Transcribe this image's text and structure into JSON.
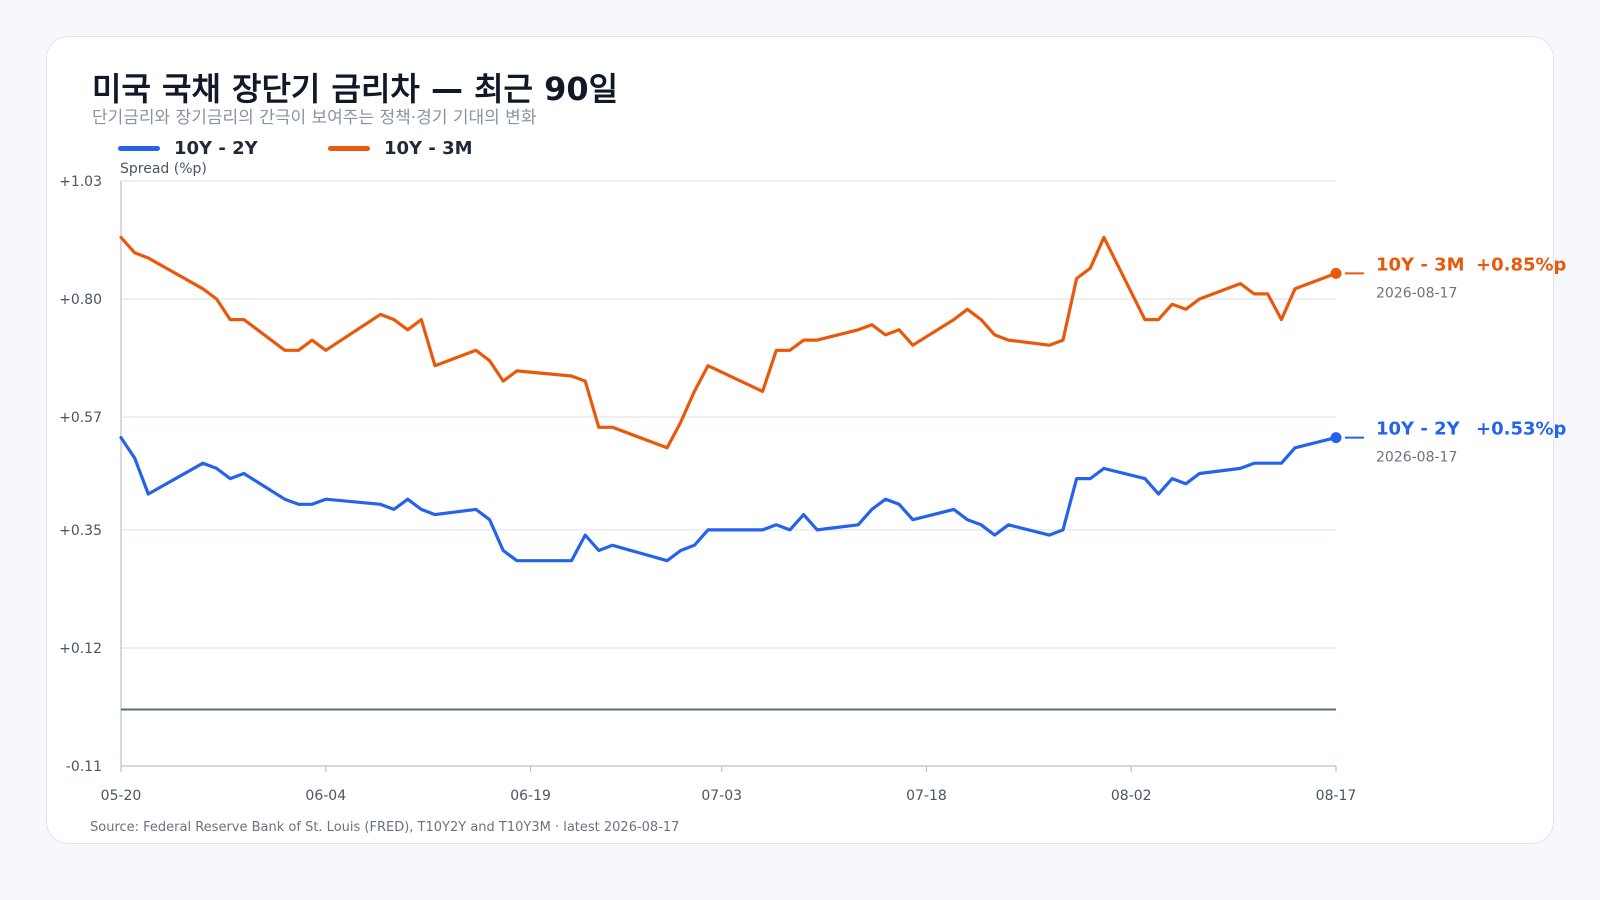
{
  "header": {
    "title": "미국 국채 장단기 금리차 — 최근 90일",
    "subtitle": "단기금리와 장기금리의 간극이 보여주는 정책·경기 기대의 변화"
  },
  "source": "Source: Federal Reserve Bank of St. Louis (FRED), T10Y2Y and T10Y3M · latest 2026-08-17",
  "chart_data": {
    "type": "line",
    "title": "미국 국채 장단기 금리차 — 최근 90일",
    "subtitle": "단기금리와 장기금리의 간극이 보여주는 정책·경기 기대의 변화",
    "ylabel": "Spread (%p)",
    "xlabel": "",
    "ylim": [
      -0.11,
      1.03
    ],
    "y_ticks": [
      -0.11,
      0.12,
      0.35,
      0.57,
      0.8,
      1.03
    ],
    "y_tick_labels": [
      "-0.11",
      "+0.12",
      "+0.35",
      "+0.57",
      "+0.80",
      "+1.03"
    ],
    "x_range": [
      "2026-05-20",
      "2026-08-17"
    ],
    "x_ticks": [
      "2026-05-20",
      "2026-06-04",
      "2026-06-19",
      "2026-07-03",
      "2026-07-18",
      "2026-08-02",
      "2026-08-17"
    ],
    "x_tick_labels": [
      "05-20",
      "06-04",
      "06-19",
      "07-03",
      "07-18",
      "08-02",
      "08-17"
    ],
    "reference_line": 0,
    "grid": true,
    "legend_position": "top-left",
    "series": [
      {
        "name": "10Y - 2Y",
        "color": "#2563eb",
        "end_label": "10Y - 2Y",
        "end_value": "+0.53%p",
        "end_date": "2026-08-17",
        "x": [
          "2026-05-20",
          "2026-05-21",
          "2026-05-22",
          "2026-05-26",
          "2026-05-27",
          "2026-05-28",
          "2026-05-29",
          "2026-06-01",
          "2026-06-02",
          "2026-06-03",
          "2026-06-04",
          "2026-06-08",
          "2026-06-09",
          "2026-06-10",
          "2026-06-11",
          "2026-06-12",
          "2026-06-15",
          "2026-06-16",
          "2026-06-17",
          "2026-06-18",
          "2026-06-22",
          "2026-06-23",
          "2026-06-24",
          "2026-06-25",
          "2026-06-29",
          "2026-06-30",
          "2026-07-01",
          "2026-07-02",
          "2026-07-06",
          "2026-07-07",
          "2026-07-08",
          "2026-07-09",
          "2026-07-10",
          "2026-07-13",
          "2026-07-14",
          "2026-07-15",
          "2026-07-16",
          "2026-07-17",
          "2026-07-20",
          "2026-07-21",
          "2026-07-22",
          "2026-07-23",
          "2026-07-24",
          "2026-07-27",
          "2026-07-28",
          "2026-07-29",
          "2026-07-30",
          "2026-07-31",
          "2026-08-03",
          "2026-08-04",
          "2026-08-05",
          "2026-08-06",
          "2026-08-07",
          "2026-08-10",
          "2026-08-11",
          "2026-08-12",
          "2026-08-13",
          "2026-08-14",
          "2026-08-17"
        ],
        "values": [
          0.53,
          0.49,
          0.42,
          0.48,
          0.47,
          0.45,
          0.46,
          0.41,
          0.4,
          0.4,
          0.41,
          0.4,
          0.39,
          0.41,
          0.39,
          0.38,
          0.39,
          0.37,
          0.31,
          0.29,
          0.29,
          0.34,
          0.31,
          0.32,
          0.29,
          0.31,
          0.32,
          0.35,
          0.35,
          0.36,
          0.35,
          0.38,
          0.35,
          0.36,
          0.39,
          0.41,
          0.4,
          0.37,
          0.39,
          0.37,
          0.36,
          0.34,
          0.36,
          0.34,
          0.35,
          0.45,
          0.45,
          0.47,
          0.45,
          0.42,
          0.45,
          0.44,
          0.46,
          0.47,
          0.48,
          0.48,
          0.48,
          0.51,
          0.53
        ]
      },
      {
        "name": "10Y - 3M",
        "color": "#ea580c",
        "end_label": "10Y - 3M",
        "end_value": "+0.85%p",
        "end_date": "2026-08-17",
        "x": [
          "2026-05-20",
          "2026-05-21",
          "2026-05-22",
          "2026-05-26",
          "2026-05-27",
          "2026-05-28",
          "2026-05-29",
          "2026-06-01",
          "2026-06-02",
          "2026-06-03",
          "2026-06-04",
          "2026-06-08",
          "2026-06-09",
          "2026-06-10",
          "2026-06-11",
          "2026-06-12",
          "2026-06-15",
          "2026-06-16",
          "2026-06-17",
          "2026-06-18",
          "2026-06-22",
          "2026-06-23",
          "2026-06-24",
          "2026-06-25",
          "2026-06-29",
          "2026-06-30",
          "2026-07-01",
          "2026-07-02",
          "2026-07-06",
          "2026-07-07",
          "2026-07-08",
          "2026-07-09",
          "2026-07-10",
          "2026-07-13",
          "2026-07-14",
          "2026-07-15",
          "2026-07-16",
          "2026-07-17",
          "2026-07-20",
          "2026-07-21",
          "2026-07-22",
          "2026-07-23",
          "2026-07-24",
          "2026-07-27",
          "2026-07-28",
          "2026-07-29",
          "2026-07-30",
          "2026-07-31",
          "2026-08-03",
          "2026-08-04",
          "2026-08-05",
          "2026-08-06",
          "2026-08-07",
          "2026-08-10",
          "2026-08-11",
          "2026-08-12",
          "2026-08-13",
          "2026-08-14",
          "2026-08-17"
        ],
        "values": [
          0.92,
          0.89,
          0.88,
          0.82,
          0.8,
          0.76,
          0.76,
          0.7,
          0.7,
          0.72,
          0.7,
          0.77,
          0.76,
          0.74,
          0.76,
          0.67,
          0.7,
          0.68,
          0.64,
          0.66,
          0.65,
          0.64,
          0.55,
          0.55,
          0.51,
          0.56,
          0.62,
          0.67,
          0.62,
          0.7,
          0.7,
          0.72,
          0.72,
          0.74,
          0.75,
          0.73,
          0.74,
          0.71,
          0.76,
          0.78,
          0.76,
          0.73,
          0.72,
          0.71,
          0.72,
          0.84,
          0.86,
          0.92,
          0.76,
          0.76,
          0.79,
          0.78,
          0.8,
          0.83,
          0.81,
          0.81,
          0.76,
          0.82,
          0.85
        ]
      }
    ]
  }
}
